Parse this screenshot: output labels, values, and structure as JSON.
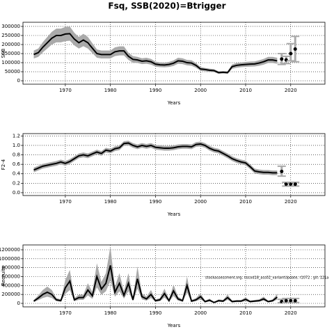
{
  "title": "Fsq, SSB(2020)=Btrigger",
  "chart_data": [
    {
      "type": "line",
      "ylabel": "SSB",
      "xlabel": "Years",
      "xlim": [
        1960.6,
        2027.6
      ],
      "xticks": [
        1970,
        1980,
        1990,
        2000,
        2010,
        2020
      ],
      "ylim": [
        -19000,
        323000
      ],
      "yticks": [
        0,
        50000,
        100000,
        150000,
        200000,
        250000,
        300000
      ],
      "grid": true,
      "color": "#000000",
      "band_color": "#aaaaaa",
      "x": [
        1963,
        1964,
        1965,
        1966,
        1967,
        1968,
        1969,
        1970,
        1971,
        1972,
        1973,
        1974,
        1975,
        1976,
        1977,
        1978,
        1979,
        1980,
        1981,
        1982,
        1983,
        1984,
        1985,
        1986,
        1987,
        1988,
        1989,
        1990,
        1991,
        1992,
        1993,
        1994,
        1995,
        1996,
        1997,
        1998,
        1999,
        2000,
        2001,
        2002,
        2003,
        2004,
        2005,
        2006,
        2007,
        2008,
        2009,
        2010,
        2011,
        2012,
        2013,
        2014,
        2015,
        2016,
        2017
      ],
      "values": [
        145000,
        155000,
        185000,
        210000,
        235000,
        250000,
        250000,
        258000,
        260000,
        230000,
        210000,
        225000,
        210000,
        180000,
        150000,
        145000,
        145000,
        145000,
        160000,
        165000,
        165000,
        135000,
        118000,
        115000,
        108000,
        110000,
        105000,
        92000,
        88000,
        87000,
        90000,
        97000,
        110000,
        108000,
        100000,
        98000,
        85000,
        65000,
        62000,
        58000,
        56000,
        45000,
        47000,
        45000,
        78000,
        85000,
        88000,
        90000,
        92000,
        93000,
        98000,
        105000,
        115000,
        115000,
        110000
      ],
      "lower": [
        123000,
        132000,
        157000,
        178000,
        200000,
        212000,
        212000,
        219000,
        221000,
        195000,
        178000,
        191000,
        178000,
        153000,
        127000,
        123000,
        123000,
        123000,
        136000,
        140000,
        140000,
        115000,
        100000,
        98000,
        92000,
        94000,
        89000,
        78000,
        75000,
        74000,
        76000,
        82000,
        94000,
        92000,
        85000,
        83000,
        72000,
        55000,
        53000,
        49000,
        48000,
        38000,
        40000,
        38000,
        66000,
        72000,
        75000,
        77000,
        78000,
        79000,
        83000,
        89000,
        98000,
        98000,
        94000
      ],
      "upper": [
        167000,
        178000,
        213000,
        242000,
        270000,
        288000,
        288000,
        297000,
        299000,
        265000,
        242000,
        259000,
        242000,
        207000,
        173000,
        167000,
        167000,
        167000,
        184000,
        190000,
        190000,
        155000,
        136000,
        132000,
        124000,
        127000,
        121000,
        106000,
        101000,
        100000,
        104000,
        112000,
        127000,
        124000,
        115000,
        113000,
        98000,
        75000,
        71000,
        67000,
        64000,
        52000,
        54000,
        52000,
        90000,
        98000,
        101000,
        104000,
        106000,
        107000,
        113000,
        121000,
        132000,
        132000,
        127000
      ],
      "points": {
        "x": [
          2018,
          2019,
          2020,
          2021
        ],
        "values": [
          120000,
          115000,
          150000,
          175000
        ],
        "lower": [
          90000,
          95000,
          110000,
          105000
        ],
        "upper": [
          150000,
          135000,
          205000,
          245000
        ]
      }
    },
    {
      "type": "line",
      "ylabel": "F2-4",
      "xlabel": "Years",
      "xlim": [
        1960.6,
        2027.6
      ],
      "xticks": [
        1970,
        1980,
        1990,
        2000,
        2010,
        2020
      ],
      "ylim": [
        -0.06,
        1.25
      ],
      "yticks": [
        {
          "value": 0,
          "label": "0.0"
        },
        0.2,
        0.4,
        0.6,
        0.8,
        {
          "value": 1,
          "label": "1.0"
        },
        1.2
      ],
      "grid": true,
      "color": "#000000",
      "band_color": "#aaaaaa",
      "x": [
        1963,
        1964,
        1965,
        1966,
        1967,
        1968,
        1969,
        1970,
        1971,
        1972,
        1973,
        1974,
        1975,
        1976,
        1977,
        1978,
        1979,
        1980,
        1981,
        1982,
        1983,
        1984,
        1985,
        1986,
        1987,
        1988,
        1989,
        1990,
        1991,
        1992,
        1993,
        1994,
        1995,
        1996,
        1997,
        1998,
        1999,
        2000,
        2001,
        2002,
        2003,
        2004,
        2005,
        2006,
        2007,
        2008,
        2009,
        2010,
        2011,
        2012,
        2013,
        2014,
        2015,
        2016,
        2017
      ],
      "values": [
        0.48,
        0.52,
        0.56,
        0.58,
        0.6,
        0.62,
        0.65,
        0.62,
        0.66,
        0.72,
        0.78,
        0.8,
        0.78,
        0.82,
        0.86,
        0.83,
        0.9,
        0.88,
        0.93,
        0.95,
        1.04,
        1.05,
        1.0,
        0.97,
        1.0,
        0.98,
        1.0,
        0.96,
        0.95,
        0.94,
        0.94,
        0.95,
        0.97,
        0.98,
        0.98,
        0.97,
        1.02,
        1.03,
        1.0,
        0.94,
        0.9,
        0.88,
        0.83,
        0.78,
        0.72,
        0.68,
        0.65,
        0.63,
        0.55,
        0.46,
        0.44,
        0.43,
        0.43,
        0.42,
        0.42
      ],
      "lower": [
        0.43,
        0.47,
        0.51,
        0.53,
        0.55,
        0.57,
        0.6,
        0.57,
        0.61,
        0.67,
        0.73,
        0.75,
        0.73,
        0.77,
        0.81,
        0.78,
        0.85,
        0.83,
        0.88,
        0.9,
        0.99,
        1.0,
        0.95,
        0.92,
        0.95,
        0.93,
        0.95,
        0.91,
        0.9,
        0.89,
        0.89,
        0.9,
        0.92,
        0.93,
        0.93,
        0.92,
        0.97,
        0.98,
        0.95,
        0.89,
        0.85,
        0.83,
        0.78,
        0.73,
        0.67,
        0.63,
        0.6,
        0.58,
        0.5,
        0.41,
        0.39,
        0.38,
        0.38,
        0.37,
        0.37
      ],
      "upper": [
        0.53,
        0.57,
        0.61,
        0.63,
        0.65,
        0.67,
        0.7,
        0.67,
        0.71,
        0.77,
        0.83,
        0.85,
        0.83,
        0.87,
        0.91,
        0.88,
        0.95,
        0.93,
        0.98,
        1.0,
        1.09,
        1.1,
        1.05,
        1.02,
        1.05,
        1.03,
        1.05,
        1.01,
        1.0,
        0.99,
        0.99,
        1.0,
        1.02,
        1.03,
        1.03,
        1.02,
        1.07,
        1.08,
        1.05,
        0.99,
        0.95,
        0.93,
        0.88,
        0.83,
        0.77,
        0.73,
        0.7,
        0.68,
        0.6,
        0.51,
        0.49,
        0.48,
        0.48,
        0.47,
        0.47
      ],
      "points": {
        "x": [
          2018,
          2019,
          2020,
          2021
        ],
        "values": [
          0.45,
          0.18,
          0.18,
          0.18
        ],
        "lower": [
          0.35,
          0.14,
          0.14,
          0.14
        ],
        "upper": [
          0.56,
          0.22,
          0.22,
          0.22
        ]
      }
    },
    {
      "type": "line",
      "ylabel": "Recruits",
      "xlabel": "Years",
      "annotation": "stockassessment.org, nscod18_ass02_variantUpdate, r1072 , git: 121a",
      "xlim": [
        1960.6,
        2027.6
      ],
      "xticks": [
        1970,
        1980,
        1990,
        2000,
        2010,
        2020
      ],
      "ylim": [
        -78000,
        1309000
      ],
      "yticks": [
        0,
        200000,
        400000,
        600000,
        800000,
        1000000,
        1200000
      ],
      "grid": true,
      "color": "#000000",
      "band_color": "#aaaaaa",
      "x": [
        1963,
        1964,
        1965,
        1966,
        1967,
        1968,
        1969,
        1970,
        1971,
        1972,
        1973,
        1974,
        1975,
        1976,
        1977,
        1978,
        1979,
        1980,
        1981,
        1982,
        1983,
        1984,
        1985,
        1986,
        1987,
        1988,
        1989,
        1990,
        1991,
        1992,
        1993,
        1994,
        1995,
        1996,
        1997,
        1998,
        1999,
        2000,
        2001,
        2002,
        2003,
        2004,
        2005,
        2006,
        2007,
        2008,
        2009,
        2010,
        2011,
        2012,
        2013,
        2014,
        2015,
        2016,
        2017
      ],
      "values": [
        50000,
        120000,
        200000,
        250000,
        200000,
        80000,
        60000,
        350000,
        500000,
        80000,
        130000,
        130000,
        300000,
        170000,
        600000,
        320000,
        450000,
        850000,
        250000,
        450000,
        180000,
        450000,
        80000,
        550000,
        150000,
        100000,
        200000,
        60000,
        80000,
        220000,
        60000,
        280000,
        100000,
        60000,
        400000,
        50000,
        80000,
        150000,
        40000,
        70000,
        20000,
        60000,
        50000,
        130000,
        40000,
        50000,
        50000,
        90000,
        40000,
        50000,
        60000,
        100000,
        40000,
        60000,
        140000
      ],
      "lower": [
        30000,
        72000,
        120000,
        150000,
        120000,
        48000,
        36000,
        210000,
        300000,
        48000,
        78000,
        78000,
        180000,
        102000,
        360000,
        192000,
        270000,
        510000,
        150000,
        270000,
        108000,
        270000,
        48000,
        330000,
        90000,
        60000,
        120000,
        36000,
        48000,
        132000,
        36000,
        168000,
        60000,
        36000,
        240000,
        30000,
        48000,
        90000,
        24000,
        42000,
        12000,
        36000,
        30000,
        78000,
        24000,
        30000,
        30000,
        54000,
        24000,
        30000,
        36000,
        60000,
        24000,
        36000,
        84000
      ],
      "upper": [
        75000,
        180000,
        300000,
        375000,
        300000,
        120000,
        90000,
        525000,
        750000,
        120000,
        195000,
        195000,
        450000,
        255000,
        900000,
        480000,
        675000,
        1275000,
        375000,
        675000,
        270000,
        675000,
        120000,
        825000,
        225000,
        150000,
        300000,
        90000,
        120000,
        330000,
        90000,
        420000,
        150000,
        90000,
        600000,
        75000,
        120000,
        225000,
        60000,
        105000,
        30000,
        90000,
        75000,
        195000,
        60000,
        75000,
        75000,
        135000,
        60000,
        75000,
        90000,
        150000,
        60000,
        90000,
        210000
      ],
      "points": {
        "x": [
          2018,
          2019,
          2020,
          2021
        ],
        "values": [
          40000,
          60000,
          60000,
          60000
        ],
        "lower": [
          15000,
          20000,
          20000,
          20000
        ],
        "upper": [
          90000,
          110000,
          110000,
          110000
        ]
      }
    }
  ]
}
